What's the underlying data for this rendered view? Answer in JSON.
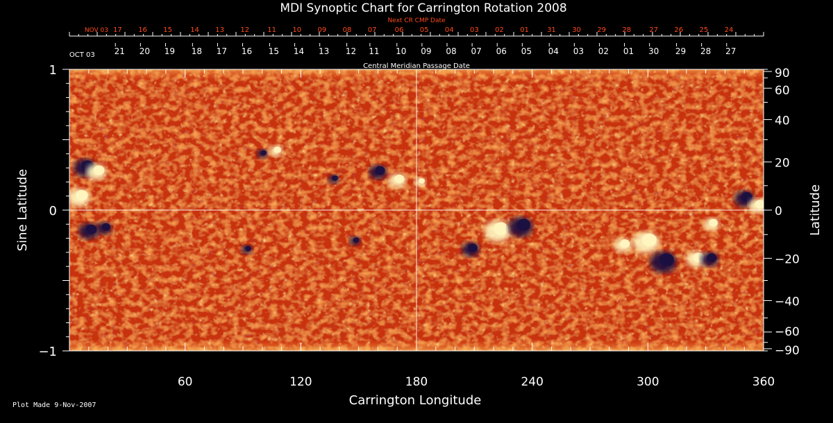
{
  "chart_data": {
    "type": "heatmap",
    "title": "MDI Synoptic Chart for Carrington Rotation 2008",
    "xlabel": "Carrington Longitude",
    "ylabel_left": "Sine Latitude",
    "ylabel_right": "Latitude",
    "top_axis_red_label": "Next CR CMP Date",
    "top_axis_white_label": "Central Meridian Passage Date",
    "xlim": [
      0,
      360
    ],
    "ylim": [
      -1,
      1
    ],
    "x_ticks": [
      "60",
      "120",
      "180",
      "240",
      "300",
      "360"
    ],
    "x_tick_values": [
      60,
      120,
      180,
      240,
      300,
      360
    ],
    "y_left_ticks": [
      {
        "value": 1,
        "label": "1"
      },
      {
        "value": 0,
        "label": "0"
      },
      {
        "value": -1,
        "label": "−1"
      }
    ],
    "y_right_ticks": [
      {
        "value": 90,
        "label": "90"
      },
      {
        "value": 60,
        "label": "60"
      },
      {
        "value": 40,
        "label": "40"
      },
      {
        "value": 20,
        "label": "20"
      },
      {
        "value": 0,
        "label": "0"
      },
      {
        "value": -20,
        "label": "−20"
      },
      {
        "value": -40,
        "label": "−40"
      },
      {
        "value": -60,
        "label": "−60"
      },
      {
        "value": -90,
        "label": "−90"
      }
    ],
    "next_cr_dates": [
      {
        "label": "NOV 03",
        "lon": 5
      },
      {
        "label": "17",
        "lon": 25
      },
      {
        "label": "16",
        "lon": 38
      },
      {
        "label": "15",
        "lon": 51
      },
      {
        "label": "14",
        "lon": 65
      },
      {
        "label": "13",
        "lon": 78
      },
      {
        "label": "12",
        "lon": 91
      },
      {
        "label": "11",
        "lon": 105
      },
      {
        "label": "10",
        "lon": 118
      },
      {
        "label": "09",
        "lon": 131
      },
      {
        "label": "08",
        "lon": 144
      },
      {
        "label": "07",
        "lon": 157
      },
      {
        "label": "06",
        "lon": 171
      },
      {
        "label": "05",
        "lon": 184
      },
      {
        "label": "04",
        "lon": 197
      },
      {
        "label": "03",
        "lon": 210
      },
      {
        "label": "02",
        "lon": 223
      },
      {
        "label": "01",
        "lon": 236
      },
      {
        "label": "31",
        "lon": 250
      },
      {
        "label": "30",
        "lon": 263
      },
      {
        "label": "29",
        "lon": 276
      },
      {
        "label": "28",
        "lon": 289
      },
      {
        "label": "27",
        "lon": 303
      },
      {
        "label": "26",
        "lon": 316
      },
      {
        "label": "25",
        "lon": 329
      },
      {
        "label": "24",
        "lon": 342
      }
    ],
    "cmp_dates": [
      {
        "label": "OCT 03",
        "lon": 3
      },
      {
        "label": "21",
        "lon": 26
      },
      {
        "label": "20",
        "lon": 39
      },
      {
        "label": "19",
        "lon": 52
      },
      {
        "label": "18",
        "lon": 66
      },
      {
        "label": "17",
        "lon": 79
      },
      {
        "label": "16",
        "lon": 92
      },
      {
        "label": "15",
        "lon": 106
      },
      {
        "label": "14",
        "lon": 119
      },
      {
        "label": "13",
        "lon": 132
      },
      {
        "label": "12",
        "lon": 146
      },
      {
        "label": "11",
        "lon": 158
      },
      {
        "label": "10",
        "lon": 172
      },
      {
        "label": "09",
        "lon": 185
      },
      {
        "label": "08",
        "lon": 198
      },
      {
        "label": "07",
        "lon": 211
      },
      {
        "label": "06",
        "lon": 224
      },
      {
        "label": "05",
        "lon": 237
      },
      {
        "label": "04",
        "lon": 251
      },
      {
        "label": "03",
        "lon": 264
      },
      {
        "label": "02",
        "lon": 277
      },
      {
        "label": "01",
        "lon": 290
      },
      {
        "label": "30",
        "lon": 303
      },
      {
        "label": "29",
        "lon": 317
      },
      {
        "label": "28",
        "lon": 330
      },
      {
        "label": "27",
        "lon": 343
      }
    ],
    "active_regions": [
      {
        "lon": 8,
        "sinlat": 0.3,
        "polarity": "negative",
        "size": 10
      },
      {
        "lon": 14,
        "sinlat": 0.27,
        "polarity": "positive",
        "size": 9
      },
      {
        "lon": 5,
        "sinlat": 0.09,
        "polarity": "positive",
        "size": 10
      },
      {
        "lon": 10,
        "sinlat": -0.15,
        "polarity": "negative",
        "size": 9
      },
      {
        "lon": 18,
        "sinlat": -0.13,
        "polarity": "negative",
        "size": 7
      },
      {
        "lon": 100,
        "sinlat": 0.4,
        "polarity": "negative",
        "size": 5
      },
      {
        "lon": 107,
        "sinlat": 0.42,
        "polarity": "positive",
        "size": 6
      },
      {
        "lon": 137,
        "sinlat": 0.22,
        "polarity": "negative",
        "size": 5
      },
      {
        "lon": 160,
        "sinlat": 0.27,
        "polarity": "negative",
        "size": 8
      },
      {
        "lon": 170,
        "sinlat": 0.21,
        "polarity": "positive",
        "size": 8
      },
      {
        "lon": 182,
        "sinlat": 0.2,
        "polarity": "positive",
        "size": 5
      },
      {
        "lon": 222,
        "sinlat": -0.15,
        "polarity": "positive",
        "size": 12
      },
      {
        "lon": 234,
        "sinlat": -0.12,
        "polarity": "negative",
        "size": 11
      },
      {
        "lon": 208,
        "sinlat": -0.28,
        "polarity": "negative",
        "size": 8
      },
      {
        "lon": 287,
        "sinlat": -0.25,
        "polarity": "positive",
        "size": 8
      },
      {
        "lon": 299,
        "sinlat": -0.23,
        "polarity": "positive",
        "size": 12
      },
      {
        "lon": 308,
        "sinlat": -0.37,
        "polarity": "negative",
        "size": 12
      },
      {
        "lon": 325,
        "sinlat": -0.35,
        "polarity": "positive",
        "size": 9
      },
      {
        "lon": 332,
        "sinlat": -0.35,
        "polarity": "negative",
        "size": 8
      },
      {
        "lon": 333,
        "sinlat": -0.1,
        "polarity": "positive",
        "size": 7
      },
      {
        "lon": 350,
        "sinlat": 0.08,
        "polarity": "negative",
        "size": 9
      },
      {
        "lon": 357,
        "sinlat": 0.03,
        "polarity": "positive",
        "size": 8
      },
      {
        "lon": 148,
        "sinlat": -0.22,
        "polarity": "negative",
        "size": 5
      },
      {
        "lon": 92,
        "sinlat": -0.28,
        "polarity": "negative",
        "size": 5
      }
    ],
    "colors": {
      "background_field": "#e8461b",
      "positive": "#fff6c0",
      "negative": "#1a1040",
      "red_axis": "#ff4a1c",
      "axes": "#ffffff"
    },
    "grid": "center cross lines"
  },
  "footer": {
    "plot_made": "Plot Made  9-Nov-2007"
  }
}
